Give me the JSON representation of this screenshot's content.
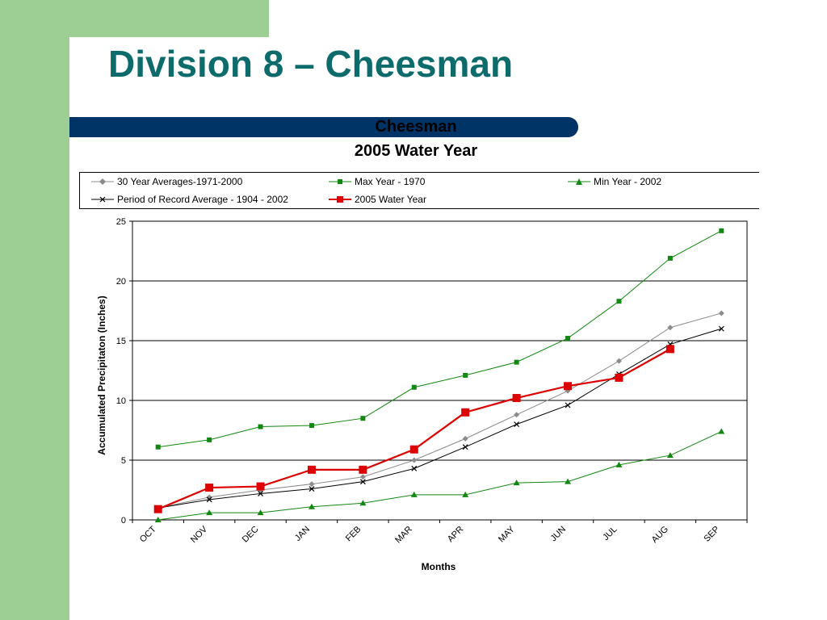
{
  "slide": {
    "title": "Division 8 – Cheesman"
  },
  "colors": {
    "title": "#0e6b6b",
    "banner": "#003366",
    "background_band": "#9dcf94"
  },
  "chart_data": {
    "type": "line",
    "title": "Cheesman",
    "subtitle": "2005 Water Year",
    "xlabel": "Months",
    "ylabel": "Accumulated Precipitaton (Inches)",
    "categories": [
      "OCT",
      "NOV",
      "DEC",
      "JAN",
      "FEB",
      "MAR",
      "APR",
      "MAY",
      "JUN",
      "JUL",
      "AUG",
      "SEP"
    ],
    "ylim": [
      0,
      25
    ],
    "yticks": [
      "0",
      "5",
      "10",
      "15",
      "20",
      "25"
    ],
    "grid": "horizontal",
    "legend_position": "top",
    "series": [
      {
        "name": "30 Year Averages-1971-2000",
        "color": "#8c8c8c",
        "marker": "diamond",
        "values": [
          1.0,
          1.9,
          2.5,
          3.0,
          3.6,
          5.0,
          6.8,
          8.8,
          10.8,
          13.3,
          16.1,
          17.3
        ]
      },
      {
        "name": "Max Year - 1970",
        "color": "#118811",
        "marker": "square",
        "values": [
          6.1,
          6.7,
          7.8,
          7.9,
          8.5,
          11.1,
          12.1,
          13.2,
          15.2,
          18.3,
          21.9,
          24.2
        ]
      },
      {
        "name": "Min Year - 2002",
        "color": "#118811",
        "marker": "triangle",
        "values": [
          0.0,
          0.6,
          0.6,
          1.1,
          1.4,
          2.1,
          2.1,
          3.1,
          3.2,
          4.6,
          5.4,
          7.4
        ]
      },
      {
        "name": "Period of Record Average - 1904 - 2002",
        "color": "#000000",
        "marker": "x",
        "values": [
          1.0,
          1.7,
          2.2,
          2.6,
          3.2,
          4.3,
          6.1,
          8.0,
          9.6,
          12.2,
          14.7,
          16.0
        ]
      },
      {
        "name": "2005 Water Year",
        "color": "#dd0000",
        "marker": "square-large",
        "values": [
          0.9,
          2.7,
          2.8,
          4.2,
          4.2,
          5.9,
          9.0,
          10.2,
          11.2,
          11.9,
          14.3,
          null
        ]
      }
    ]
  }
}
